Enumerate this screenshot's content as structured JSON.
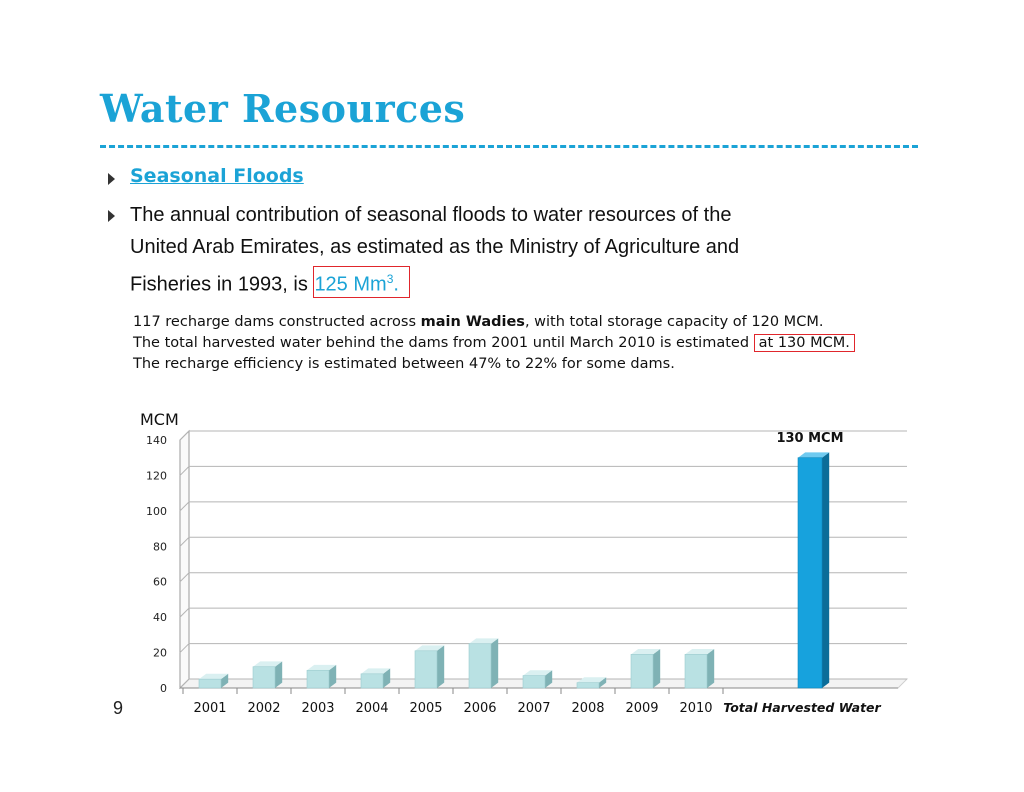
{
  "slide": {
    "title": "Water Resources",
    "subheading": "Seasonal Floods",
    "paragraph": {
      "line1": "The annual contribution of seasonal floods to water resources of the",
      "line2": "United Arab Emirates, as estimated as the Ministry of Agriculture and",
      "line3_prefix": "Fisheries in 1993, is",
      "highlight_value": "125 Mm",
      "highlight_sup": "3",
      "highlight_suffix": "."
    },
    "notes": {
      "line1_pre": "117 recharge dams constructed across",
      "line1_bold": "main Wadies",
      "line1_post": ", with total storage capacity of 120 MCM.",
      "line2_pre": "The total harvested water behind the dams from 2001 until March 2010 is estimated",
      "line2_box": "at 130 MCM.",
      "line3": "The recharge efficiency is estimated between 47% to 22%  for some dams."
    },
    "page_number": "9"
  },
  "colors": {
    "title": "#1ba3d6",
    "bar_light": "#b9e1e3",
    "bar_highlight": "#17a2dd",
    "highlight_border": "#e0262c"
  },
  "chart_data": {
    "type": "bar",
    "ylabel": "MCM",
    "ylim": [
      0,
      140
    ],
    "yticks": [
      "0",
      "20",
      "40",
      "60",
      "80",
      "100",
      "120",
      "140"
    ],
    "categories": [
      "2001",
      "2002",
      "2003",
      "2004",
      "2005",
      "2006",
      "2007",
      "2008",
      "2009",
      "2010",
      "Total Harvested Water"
    ],
    "values": [
      5,
      12,
      10,
      8,
      21,
      25,
      7,
      3,
      19,
      19,
      130
    ],
    "highlight_index": 10,
    "data_labels": [
      {
        "index": 10,
        "text": "130 MCM"
      }
    ],
    "grid": true,
    "style": "3d-columns"
  }
}
